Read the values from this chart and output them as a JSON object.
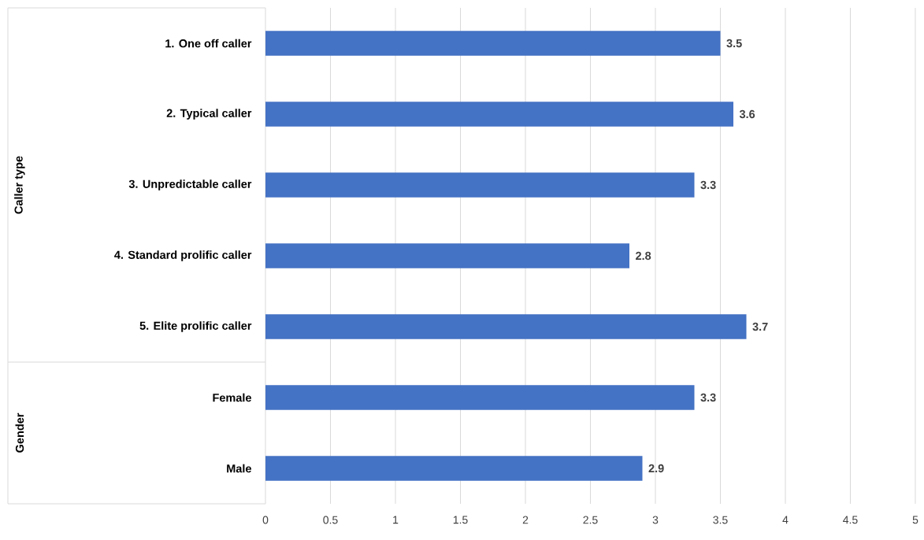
{
  "chart_data": {
    "type": "bar",
    "orientation": "horizontal",
    "categories": [
      "1. One off caller",
      "2. Typical caller",
      "3. Unpredictable caller",
      "4. Standard prolific caller",
      "5. Elite prolific caller",
      "Female",
      "Male"
    ],
    "values": [
      3.5,
      3.6,
      3.3,
      2.8,
      3.7,
      3.3,
      2.9
    ],
    "color": "#4472c4",
    "xlim": [
      0,
      5
    ],
    "xticks": [
      0,
      0.5,
      1,
      1.5,
      2,
      2.5,
      3,
      3.5,
      4,
      4.5,
      5
    ],
    "grid": "x",
    "data_labels": true,
    "annotations": [
      "Caller type",
      "Gender"
    ]
  }
}
